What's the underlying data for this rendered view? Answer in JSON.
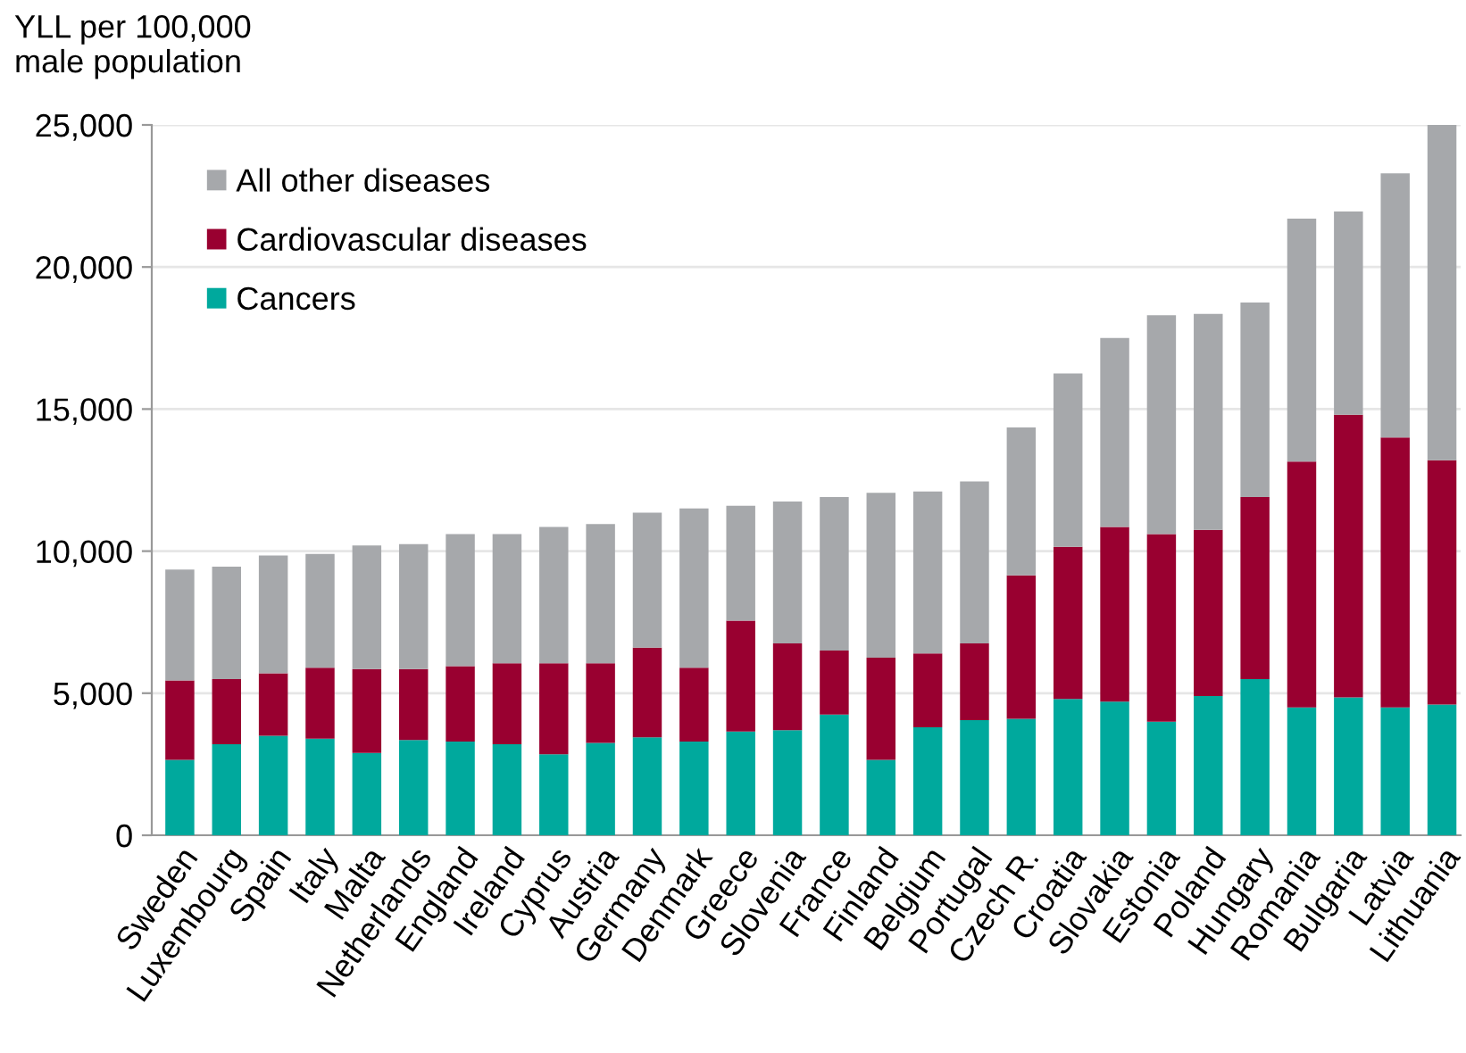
{
  "chart_data": {
    "type": "bar",
    "stacked": true,
    "ylabel": "YLL per 100,000\nmale population",
    "categories": [
      "Sweden",
      "Luxembourg",
      "Spain",
      "Italy",
      "Malta",
      "Netherlands",
      "England",
      "Ireland",
      "Cyprus",
      "Austria",
      "Germany",
      "Denmark",
      "Greece",
      "Slovenia",
      "France",
      "Finland",
      "Belgium",
      "Portugal",
      "Czech R.",
      "Croatia",
      "Slovakia",
      "Estonia",
      "Poland",
      "Hungary",
      "Romania",
      "Bulgaria",
      "Latvia",
      "Lithuania"
    ],
    "series": [
      {
        "name": "Cancers",
        "color": "#00a99d",
        "values": [
          2650,
          3200,
          3500,
          3400,
          2900,
          3350,
          3300,
          3200,
          2850,
          3250,
          3450,
          3300,
          3650,
          3700,
          4250,
          2650,
          3800,
          4050,
          4100,
          4800,
          4700,
          4000,
          4900,
          5500,
          4500,
          4850,
          4500,
          4600
        ]
      },
      {
        "name": "Cardiovascular diseases",
        "color": "#990030",
        "values": [
          2800,
          2300,
          2200,
          2500,
          2950,
          2500,
          2650,
          2850,
          3200,
          2800,
          3150,
          2600,
          3900,
          3050,
          2250,
          3600,
          2600,
          2700,
          5050,
          5350,
          6150,
          6600,
          5850,
          6400,
          8650,
          9950,
          9500,
          8600
        ]
      },
      {
        "name": "All other diseases",
        "color": "#a6a8ab",
        "values": [
          3900,
          3950,
          4150,
          4000,
          4350,
          4400,
          4650,
          4550,
          4800,
          4900,
          4750,
          5600,
          4050,
          5000,
          5400,
          5800,
          5700,
          5700,
          5200,
          6100,
          6650,
          7700,
          7600,
          6850,
          8550,
          7150,
          9300,
          11800
        ]
      }
    ],
    "ylim": [
      0,
      25000
    ],
    "yticks": [
      {
        "value": 0,
        "label": "0"
      },
      {
        "value": 5000,
        "label": "5,000"
      },
      {
        "value": 10000,
        "label": "10,000"
      },
      {
        "value": 15000,
        "label": "15,000"
      },
      {
        "value": 20000,
        "label": "20,000"
      },
      {
        "value": 25000,
        "label": "25,000"
      }
    ],
    "grid": "y",
    "legend": "top left"
  }
}
